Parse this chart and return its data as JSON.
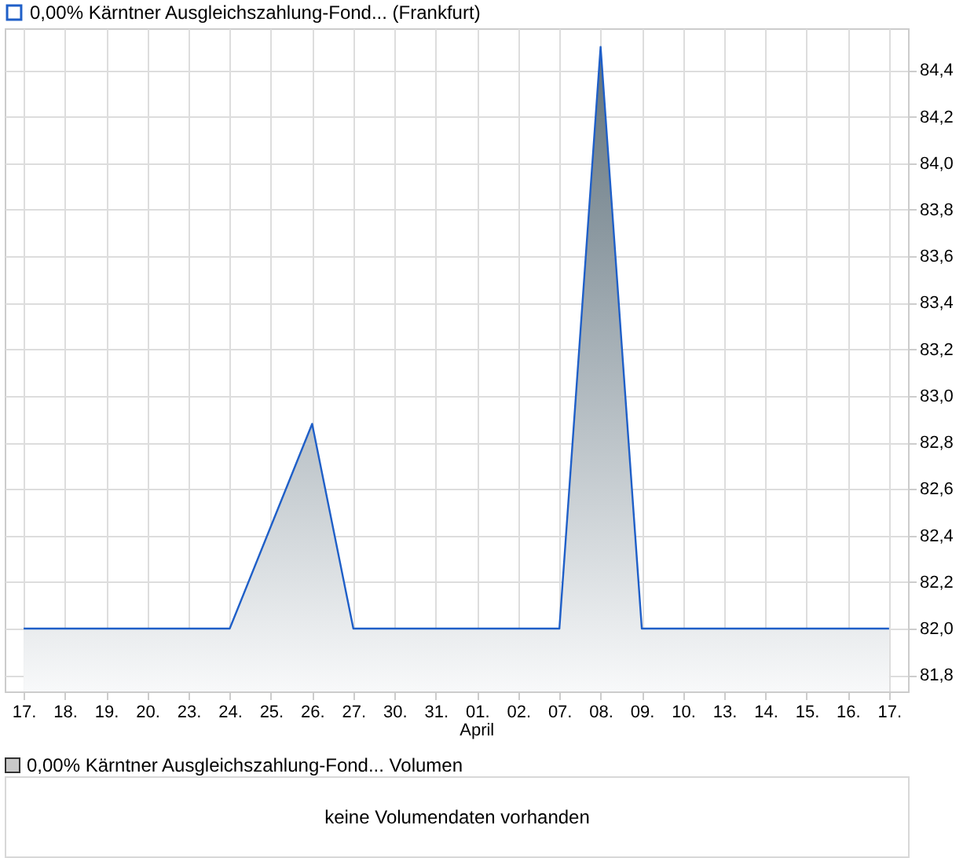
{
  "chart_data": {
    "type": "area",
    "categories": [
      "17.",
      "18.",
      "19.",
      "20.",
      "23.",
      "24.",
      "25.",
      "26.",
      "27.",
      "30.",
      "31.",
      "01.",
      "02.",
      "07.",
      "08.",
      "09.",
      "10.",
      "13.",
      "14.",
      "15.",
      "16.",
      "17."
    ],
    "series": [
      {
        "name": "0,00% Kärntner Ausgleichszahlung-Fond... (Frankfurt)",
        "color": "#1f5fc8",
        "values": [
          82.0,
          82.0,
          82.0,
          82.0,
          82.0,
          82.0,
          82.44,
          82.88,
          82.0,
          82.0,
          82.0,
          82.0,
          82.0,
          82.0,
          84.5,
          82.0,
          82.0,
          82.0,
          82.0,
          82.0,
          82.0,
          82.0
        ]
      }
    ],
    "ylim": [
      81.73,
      84.58
    ],
    "yticks": [
      {
        "value": 81.8,
        "label": "81,8"
      },
      {
        "value": 82.0,
        "label": "82,0"
      },
      {
        "value": 82.2,
        "label": "82,2"
      },
      {
        "value": 82.4,
        "label": "82,4"
      },
      {
        "value": 82.6,
        "label": "82,6"
      },
      {
        "value": 82.8,
        "label": "82,8"
      },
      {
        "value": 83.0,
        "label": "83,0"
      },
      {
        "value": 83.2,
        "label": "83,2"
      },
      {
        "value": 83.4,
        "label": "83,4"
      },
      {
        "value": 83.6,
        "label": "83,6"
      },
      {
        "value": 83.8,
        "label": "83,8"
      },
      {
        "value": 84.0,
        "label": "84,0"
      },
      {
        "value": 84.2,
        "label": "84,2"
      },
      {
        "value": 84.4,
        "label": "84,4"
      }
    ],
    "grid": true,
    "legend": "top left",
    "annotations": [
      "April",
      "0,00% Kärntner Ausgleichszahlung-Fond... Volumen",
      "keine Volumendaten vorhanden"
    ]
  }
}
